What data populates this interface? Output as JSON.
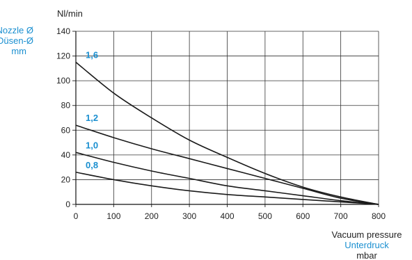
{
  "chart_data": {
    "type": "line",
    "y_unit": "Nl/min",
    "legend_title": [
      "Nozzle Ø",
      "Düsen-Ø",
      "mm"
    ],
    "x_title": [
      "Vacuum pressure",
      "Unterdruck",
      "mbar"
    ],
    "xlim": [
      0,
      800
    ],
    "ylim": [
      0,
      140
    ],
    "x_ticks": [
      0,
      100,
      200,
      300,
      400,
      500,
      600,
      700,
      800
    ],
    "y_ticks": [
      0,
      20,
      40,
      60,
      80,
      100,
      120,
      140
    ],
    "grid": true,
    "series": [
      {
        "name": "1,6",
        "x": [
          0,
          100,
          200,
          300,
          400,
          500,
          600,
          700,
          800
        ],
        "y": [
          115,
          90,
          70,
          52,
          38,
          25,
          14,
          6,
          0
        ]
      },
      {
        "name": "1,2",
        "x": [
          0,
          100,
          200,
          300,
          400,
          500,
          600,
          700,
          800
        ],
        "y": [
          64,
          54,
          45,
          37,
          29,
          21,
          13,
          5,
          0
        ]
      },
      {
        "name": "1,0",
        "x": [
          0,
          100,
          200,
          300,
          400,
          500,
          600,
          700,
          800
        ],
        "y": [
          42,
          34,
          27,
          21,
          15,
          11,
          7,
          3,
          0
        ]
      },
      {
        "name": "0,8",
        "x": [
          0,
          100,
          200,
          300,
          400,
          500,
          600,
          700,
          800
        ],
        "y": [
          26,
          20,
          15,
          11,
          8,
          6,
          4,
          2,
          0
        ]
      }
    ]
  },
  "colors": {
    "accent": "#1a8fd0",
    "line": "#1a1a1a",
    "grid": "#333333",
    "text": "#222222"
  }
}
